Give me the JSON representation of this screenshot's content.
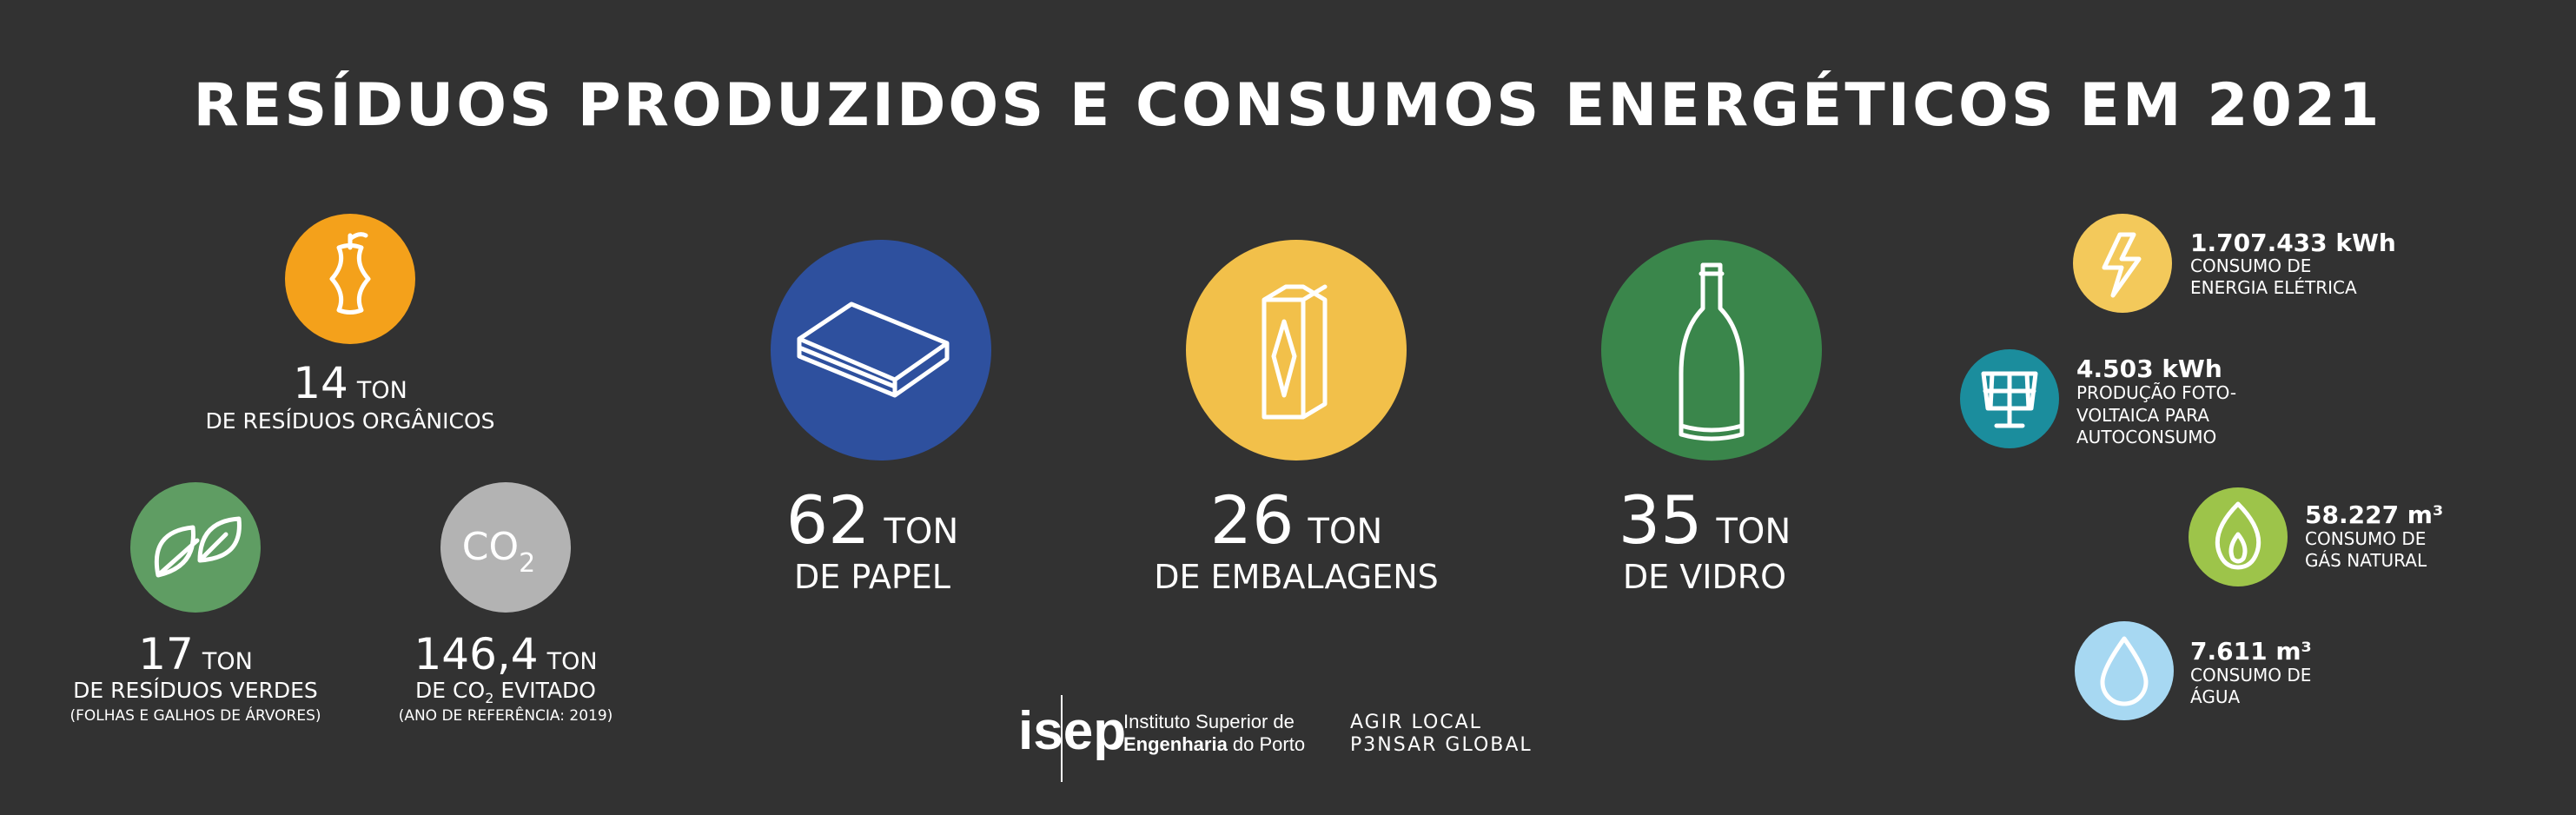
{
  "header": {
    "title": "RESÍDUOS PRODUZIDOS E CONSUMOS ENERGÉTICOS EM 2021"
  },
  "waste": {
    "organic": {
      "value": "14",
      "unit": "TON",
      "label": "DE RESÍDUOS ORGÂNICOS"
    },
    "green": {
      "value": "17",
      "unit": "TON",
      "label": "DE RESÍDUOS VERDES",
      "note": "(FOLHAS E GALHOS DE ÁRVORES)"
    },
    "co2": {
      "icon": [
        "CO",
        "2"
      ],
      "value": "146,4",
      "unit": "TON",
      "label": [
        "DE CO",
        "2",
        " EVITADO"
      ],
      "note": "(ANO DE REFERÊNCIA: 2019)"
    },
    "paper": {
      "value": "62",
      "unit": "TON",
      "label": "DE PAPEL"
    },
    "packaging": {
      "value": "26",
      "unit": "TON",
      "label": "DE EMBALAGENS"
    },
    "glass": {
      "value": "35",
      "unit": "TON",
      "label": "DE VIDRO"
    }
  },
  "energy": {
    "electricity": {
      "value": "1.707.433 kWh",
      "lines": [
        "CONSUMO DE",
        "ENERGIA ELÉTRICA"
      ]
    },
    "solar": {
      "value": "4.503 kWh",
      "lines": [
        "PRODUÇÃO FOTO-",
        "VOLTAICA PARA",
        "AUTOCONSUMO"
      ]
    },
    "gas": {
      "value": "58.227 m³",
      "lines": [
        "CONSUMO DE",
        "GÁS NATURAL"
      ]
    },
    "water": {
      "value": "7.611 m³",
      "lines": [
        "CONSUMO DE",
        "ÁGUA"
      ]
    }
  },
  "footer": {
    "logo": "isep",
    "institute": [
      "Instituto Superior de",
      "Engenharia",
      " do Porto"
    ],
    "slogan": [
      "AGIR LOCAL",
      "P3NSAR GLOBAL"
    ]
  }
}
